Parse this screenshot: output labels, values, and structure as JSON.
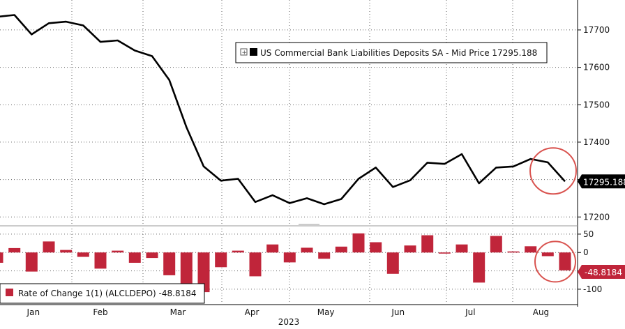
{
  "chart_data": [
    {
      "type": "line",
      "legend": {
        "label": "US Commercial Bank Liabilities Deposits SA - Mid Price",
        "value": "17295.188"
      },
      "last_value_label": "17295.188",
      "ylim": [
        17180,
        17780
      ],
      "yticks": [
        17200,
        17300,
        17400,
        17500,
        17600,
        17700
      ],
      "ytick_labels": [
        "17200",
        "17300",
        "17400",
        "17500",
        "17600",
        "17700"
      ],
      "line_color": "#000000",
      "x": [
        0,
        1,
        2,
        3,
        4,
        5,
        6,
        7,
        8,
        9,
        10,
        11,
        12,
        13,
        14,
        15,
        16,
        17,
        18,
        19,
        20,
        21,
        22,
        23,
        24,
        25,
        26,
        27,
        28,
        29,
        30,
        31,
        32,
        33
      ],
      "values": [
        17735,
        17740,
        17688,
        17718,
        17722,
        17712,
        17668,
        17672,
        17645,
        17630,
        17566,
        17440,
        17335,
        17297,
        17302,
        17240,
        17258,
        17237,
        17250,
        17234,
        17248,
        17302,
        17332,
        17280,
        17298,
        17345,
        17342,
        17368,
        17290,
        17332,
        17335,
        17355,
        17346,
        17295
      ]
    },
    {
      "type": "bar",
      "legend": {
        "label": "Rate of Change 1(1) (ALCLDEPO)",
        "value": "-48.8184"
      },
      "last_value_label": "-48.8184",
      "ylim": [
        -140,
        65
      ],
      "yticks": [
        -100,
        -50,
        0,
        50
      ],
      "ytick_labels": [
        "-100",
        "-50",
        "0",
        "50"
      ],
      "bar_color": "#c0253a",
      "x": [
        0,
        1,
        2,
        3,
        4,
        5,
        6,
        7,
        8,
        9,
        10,
        11,
        12,
        13,
        14,
        15,
        16,
        17,
        18,
        19,
        20,
        21,
        22,
        23,
        24,
        25,
        26,
        27,
        28,
        29,
        30,
        31,
        32,
        33
      ],
      "values": [
        -28,
        12,
        -52,
        30,
        7,
        -12,
        -44,
        5,
        -28,
        -15,
        -62,
        -96,
        -108,
        -40,
        5,
        -65,
        22,
        -27,
        13,
        -17,
        16,
        52,
        28,
        -58,
        19,
        47,
        -3,
        22,
        -82,
        45,
        3,
        17,
        -10,
        -48.8
      ]
    }
  ],
  "x_axis": {
    "month_labels": [
      "Jan",
      "Feb",
      "Mar",
      "Apr",
      "May",
      "Jun",
      "Jul",
      "Aug"
    ],
    "month_positions": [
      2.1,
      6.0,
      10.5,
      14.8,
      19.1,
      23.3,
      27.5,
      31.6
    ],
    "year_label": "2023"
  },
  "annotations": {
    "highlight_color": "#d9534f"
  }
}
